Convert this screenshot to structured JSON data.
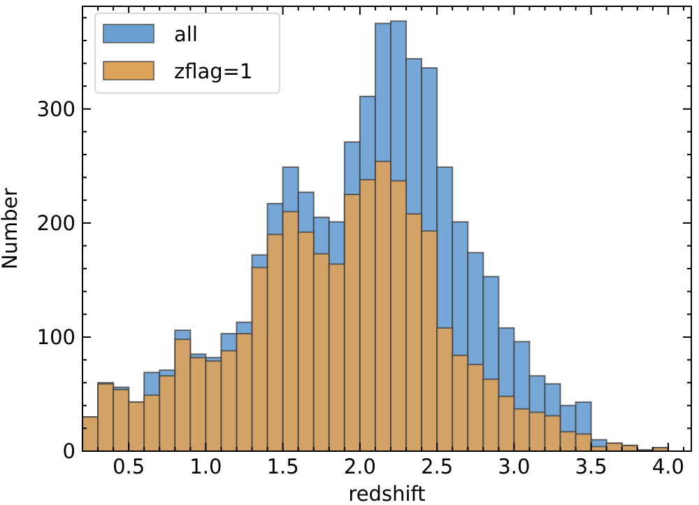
{
  "chart_data": {
    "type": "bar",
    "subtype": "overlaid-histogram",
    "xlabel": "redshift",
    "ylabel": "Number",
    "xlim": [
      0.2,
      4.15
    ],
    "ylim": [
      0,
      390
    ],
    "xticks": [
      "0.5",
      "1.0",
      "1.5",
      "2.0",
      "2.5",
      "3.0",
      "3.5",
      "4.0"
    ],
    "yticks": [
      "0",
      "100",
      "200",
      "300"
    ],
    "bin_start": 0.2,
    "bin_width": 0.1,
    "legend_position": "upper-left",
    "series": [
      {
        "name": "all",
        "color": "#6a9fd2",
        "values": [
          30,
          60,
          56,
          43,
          69,
          71,
          106,
          85,
          82,
          103,
          113,
          172,
          217,
          249,
          227,
          205,
          201,
          271,
          311,
          375,
          377,
          344,
          336,
          249,
          201,
          174,
          153,
          108,
          96,
          66,
          59,
          40,
          43,
          10,
          7,
          5,
          1,
          3,
          0
        ]
      },
      {
        "name": "zflag=1",
        "color": "#dda25a",
        "values": [
          30,
          59,
          54,
          43,
          49,
          66,
          98,
          82,
          79,
          88,
          103,
          161,
          190,
          210,
          192,
          173,
          164,
          225,
          238,
          254,
          237,
          208,
          193,
          108,
          84,
          76,
          63,
          48,
          37,
          34,
          31,
          17,
          15,
          4,
          7,
          5,
          1,
          3,
          0
        ]
      }
    ]
  }
}
